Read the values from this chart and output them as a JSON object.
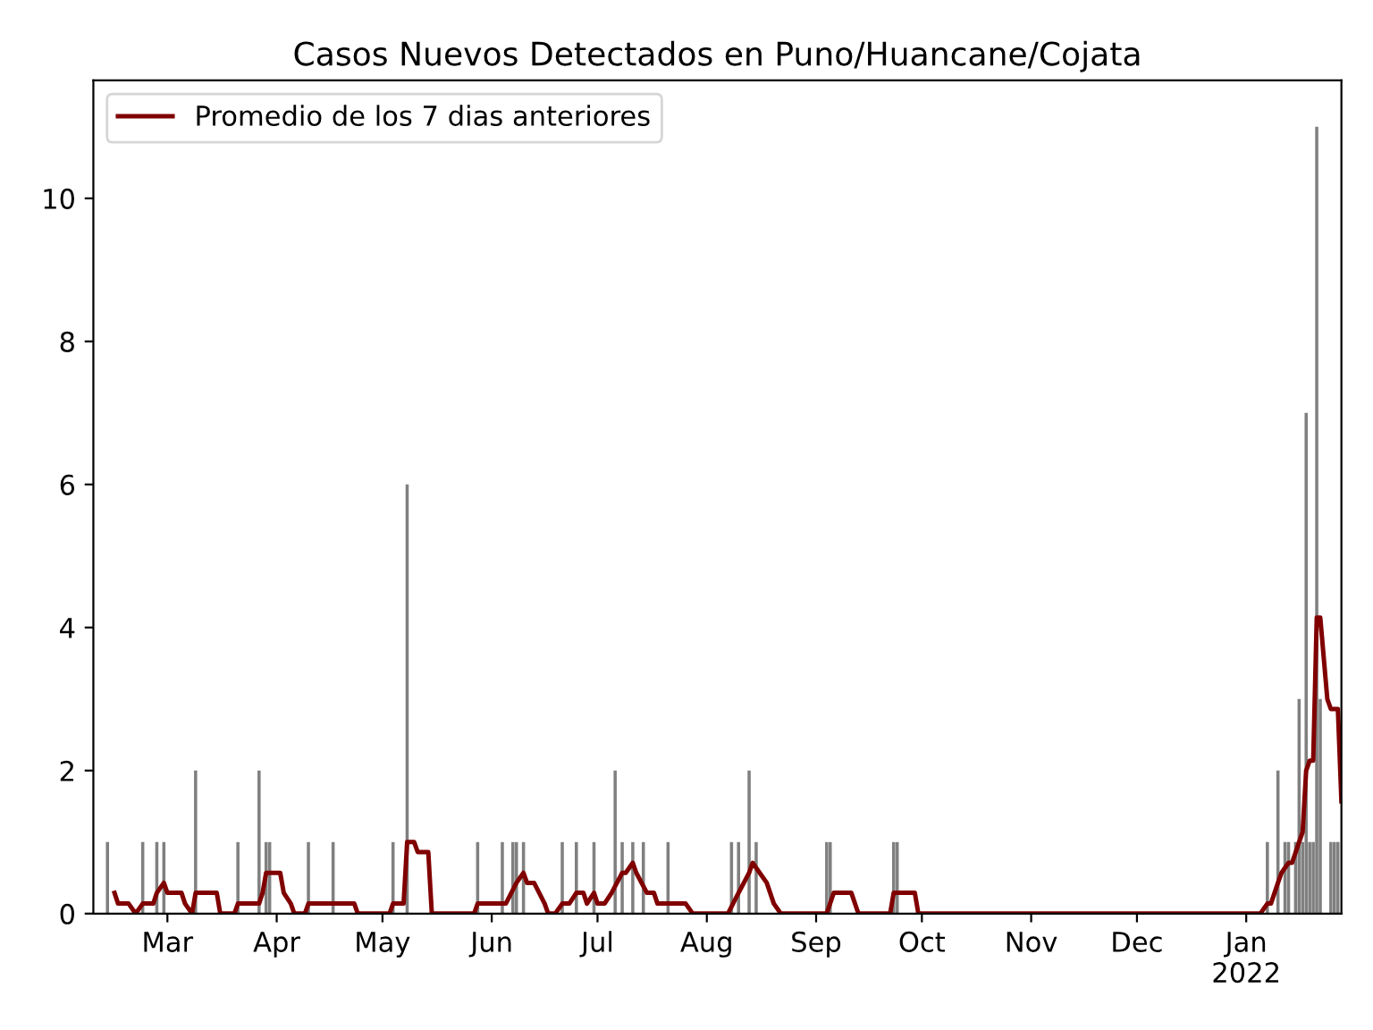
{
  "chart_data": {
    "type": "bar",
    "title": "Casos Nuevos Detectados en Puno/Huancane/Cojata",
    "xlim": [
      "2021-02-08",
      "2022-01-28"
    ],
    "ylim": [
      0,
      11.65
    ],
    "yticks": [
      0,
      2,
      4,
      6,
      8,
      10
    ],
    "xticks": [
      {
        "value": "2021-03-01",
        "label": "Mar"
      },
      {
        "value": "2021-04-01",
        "label": "Apr"
      },
      {
        "value": "2021-05-01",
        "label": "May"
      },
      {
        "value": "2021-06-01",
        "label": "Jun"
      },
      {
        "value": "2021-07-01",
        "label": "Jul"
      },
      {
        "value": "2021-08-01",
        "label": "Aug"
      },
      {
        "value": "2021-09-01",
        "label": "Sep"
      },
      {
        "value": "2021-10-01",
        "label": "Oct"
      },
      {
        "value": "2021-11-01",
        "label": "Nov"
      },
      {
        "value": "2021-12-01",
        "label": "Dec"
      },
      {
        "value": "2022-01-01",
        "label": "Jan\n2022"
      }
    ],
    "grid": false,
    "legend": "top left",
    "series": [
      {
        "color": "#808080",
        "x": [
          "2021-02-12",
          "2021-02-22",
          "2021-02-26",
          "2021-02-28",
          "2021-03-09",
          "2021-03-21",
          "2021-03-27",
          "2021-03-29",
          "2021-03-30",
          "2021-04-10",
          "2021-04-17",
          "2021-05-04",
          "2021-05-08",
          "2021-05-28",
          "2021-06-04",
          "2021-06-07",
          "2021-06-08",
          "2021-06-10",
          "2021-06-21",
          "2021-06-25",
          "2021-06-30",
          "2021-07-06",
          "2021-07-08",
          "2021-07-11",
          "2021-07-14",
          "2021-07-21",
          "2021-08-08",
          "2021-08-10",
          "2021-08-13",
          "2021-08-15",
          "2021-09-04",
          "2021-09-05",
          "2021-09-23",
          "2021-09-24",
          "2022-01-07",
          "2022-01-10",
          "2022-01-12",
          "2022-01-13",
          "2022-01-15",
          "2022-01-16",
          "2022-01-17",
          "2022-01-18",
          "2022-01-19",
          "2022-01-20",
          "2022-01-21",
          "2022-01-22",
          "2022-01-25",
          "2022-01-26",
          "2022-01-27"
        ],
        "values": [
          1,
          1,
          1,
          1,
          2,
          1,
          2,
          1,
          1,
          1,
          1,
          1,
          6,
          1,
          1,
          1,
          1,
          1,
          1,
          1,
          1,
          2,
          1,
          1,
          1,
          1,
          1,
          1,
          2,
          1,
          1,
          1,
          1,
          1,
          1,
          2,
          1,
          1,
          1,
          3,
          1,
          7,
          1,
          1,
          11,
          3,
          1,
          1,
          1
        ]
      },
      {
        "type": "line",
        "name": "Promedio de los 7 dias anteriores",
        "color": "#800000",
        "line_style": "solid",
        "marker": "none",
        "x": [
          "2021-02-14",
          "2021-02-15",
          "2021-02-18",
          "2021-02-20",
          "2021-02-22",
          "2021-02-25",
          "2021-02-26",
          "2021-02-28",
          "2021-03-01",
          "2021-03-05",
          "2021-03-06",
          "2021-03-08",
          "2021-03-09",
          "2021-03-15",
          "2021-03-16",
          "2021-03-20",
          "2021-03-21",
          "2021-03-27",
          "2021-03-28",
          "2021-03-29",
          "2021-04-02",
          "2021-04-03",
          "2021-04-05",
          "2021-04-06",
          "2021-04-09",
          "2021-04-10",
          "2021-04-23",
          "2021-04-24",
          "2021-05-03",
          "2021-05-04",
          "2021-05-07",
          "2021-05-08",
          "2021-05-10",
          "2021-05-11",
          "2021-05-14",
          "2021-05-15",
          "2021-05-27",
          "2021-05-28",
          "2021-06-05",
          "2021-06-08",
          "2021-06-10",
          "2021-06-11",
          "2021-06-13",
          "2021-06-16",
          "2021-06-17",
          "2021-06-19",
          "2021-06-21",
          "2021-06-23",
          "2021-06-25",
          "2021-06-27",
          "2021-06-28",
          "2021-06-30",
          "2021-07-01",
          "2021-07-03",
          "2021-07-05",
          "2021-07-08",
          "2021-07-09",
          "2021-07-11",
          "2021-07-12",
          "2021-07-15",
          "2021-07-17",
          "2021-07-18",
          "2021-07-26",
          "2021-07-28",
          "2021-08-07",
          "2021-08-10",
          "2021-08-13",
          "2021-08-14",
          "2021-08-16",
          "2021-08-18",
          "2021-08-20",
          "2021-08-22",
          "2021-09-04",
          "2021-09-06",
          "2021-09-11",
          "2021-09-13",
          "2021-09-22",
          "2021-09-23",
          "2021-09-29",
          "2021-09-30",
          "2022-01-05",
          "2022-01-07",
          "2022-01-08",
          "2022-01-10",
          "2022-01-11",
          "2022-01-13",
          "2022-01-14",
          "2022-01-16",
          "2022-01-17",
          "2022-01-18",
          "2022-01-19",
          "2022-01-20",
          "2022-01-21",
          "2022-01-22",
          "2022-01-23",
          "2022-01-24",
          "2022-01-25",
          "2022-01-27",
          "2022-01-28"
        ],
        "values": [
          0.29,
          0.14,
          0.14,
          0,
          0.14,
          0.14,
          0.29,
          0.43,
          0.29,
          0.29,
          0.14,
          0,
          0.29,
          0.29,
          0,
          0,
          0.14,
          0.14,
          0.29,
          0.57,
          0.57,
          0.29,
          0.14,
          0,
          0,
          0.14,
          0.14,
          0,
          0,
          0.14,
          0.14,
          1.0,
          1.0,
          0.86,
          0.86,
          0,
          0,
          0.14,
          0.14,
          0.43,
          0.57,
          0.43,
          0.43,
          0.14,
          0,
          0,
          0.14,
          0.14,
          0.29,
          0.29,
          0.14,
          0.29,
          0.14,
          0.14,
          0.29,
          0.57,
          0.57,
          0.71,
          0.57,
          0.29,
          0.29,
          0.14,
          0.14,
          0,
          0,
          0.29,
          0.57,
          0.71,
          0.57,
          0.43,
          0.14,
          0,
          0,
          0.29,
          0.29,
          0,
          0,
          0.29,
          0.29,
          0,
          0,
          0.14,
          0.14,
          0.43,
          0.57,
          0.71,
          0.71,
          1.0,
          1.14,
          2.0,
          2.14,
          2.14,
          4.14,
          4.14,
          3.57,
          3.0,
          2.86,
          2.86,
          1.57
        ]
      }
    ]
  }
}
